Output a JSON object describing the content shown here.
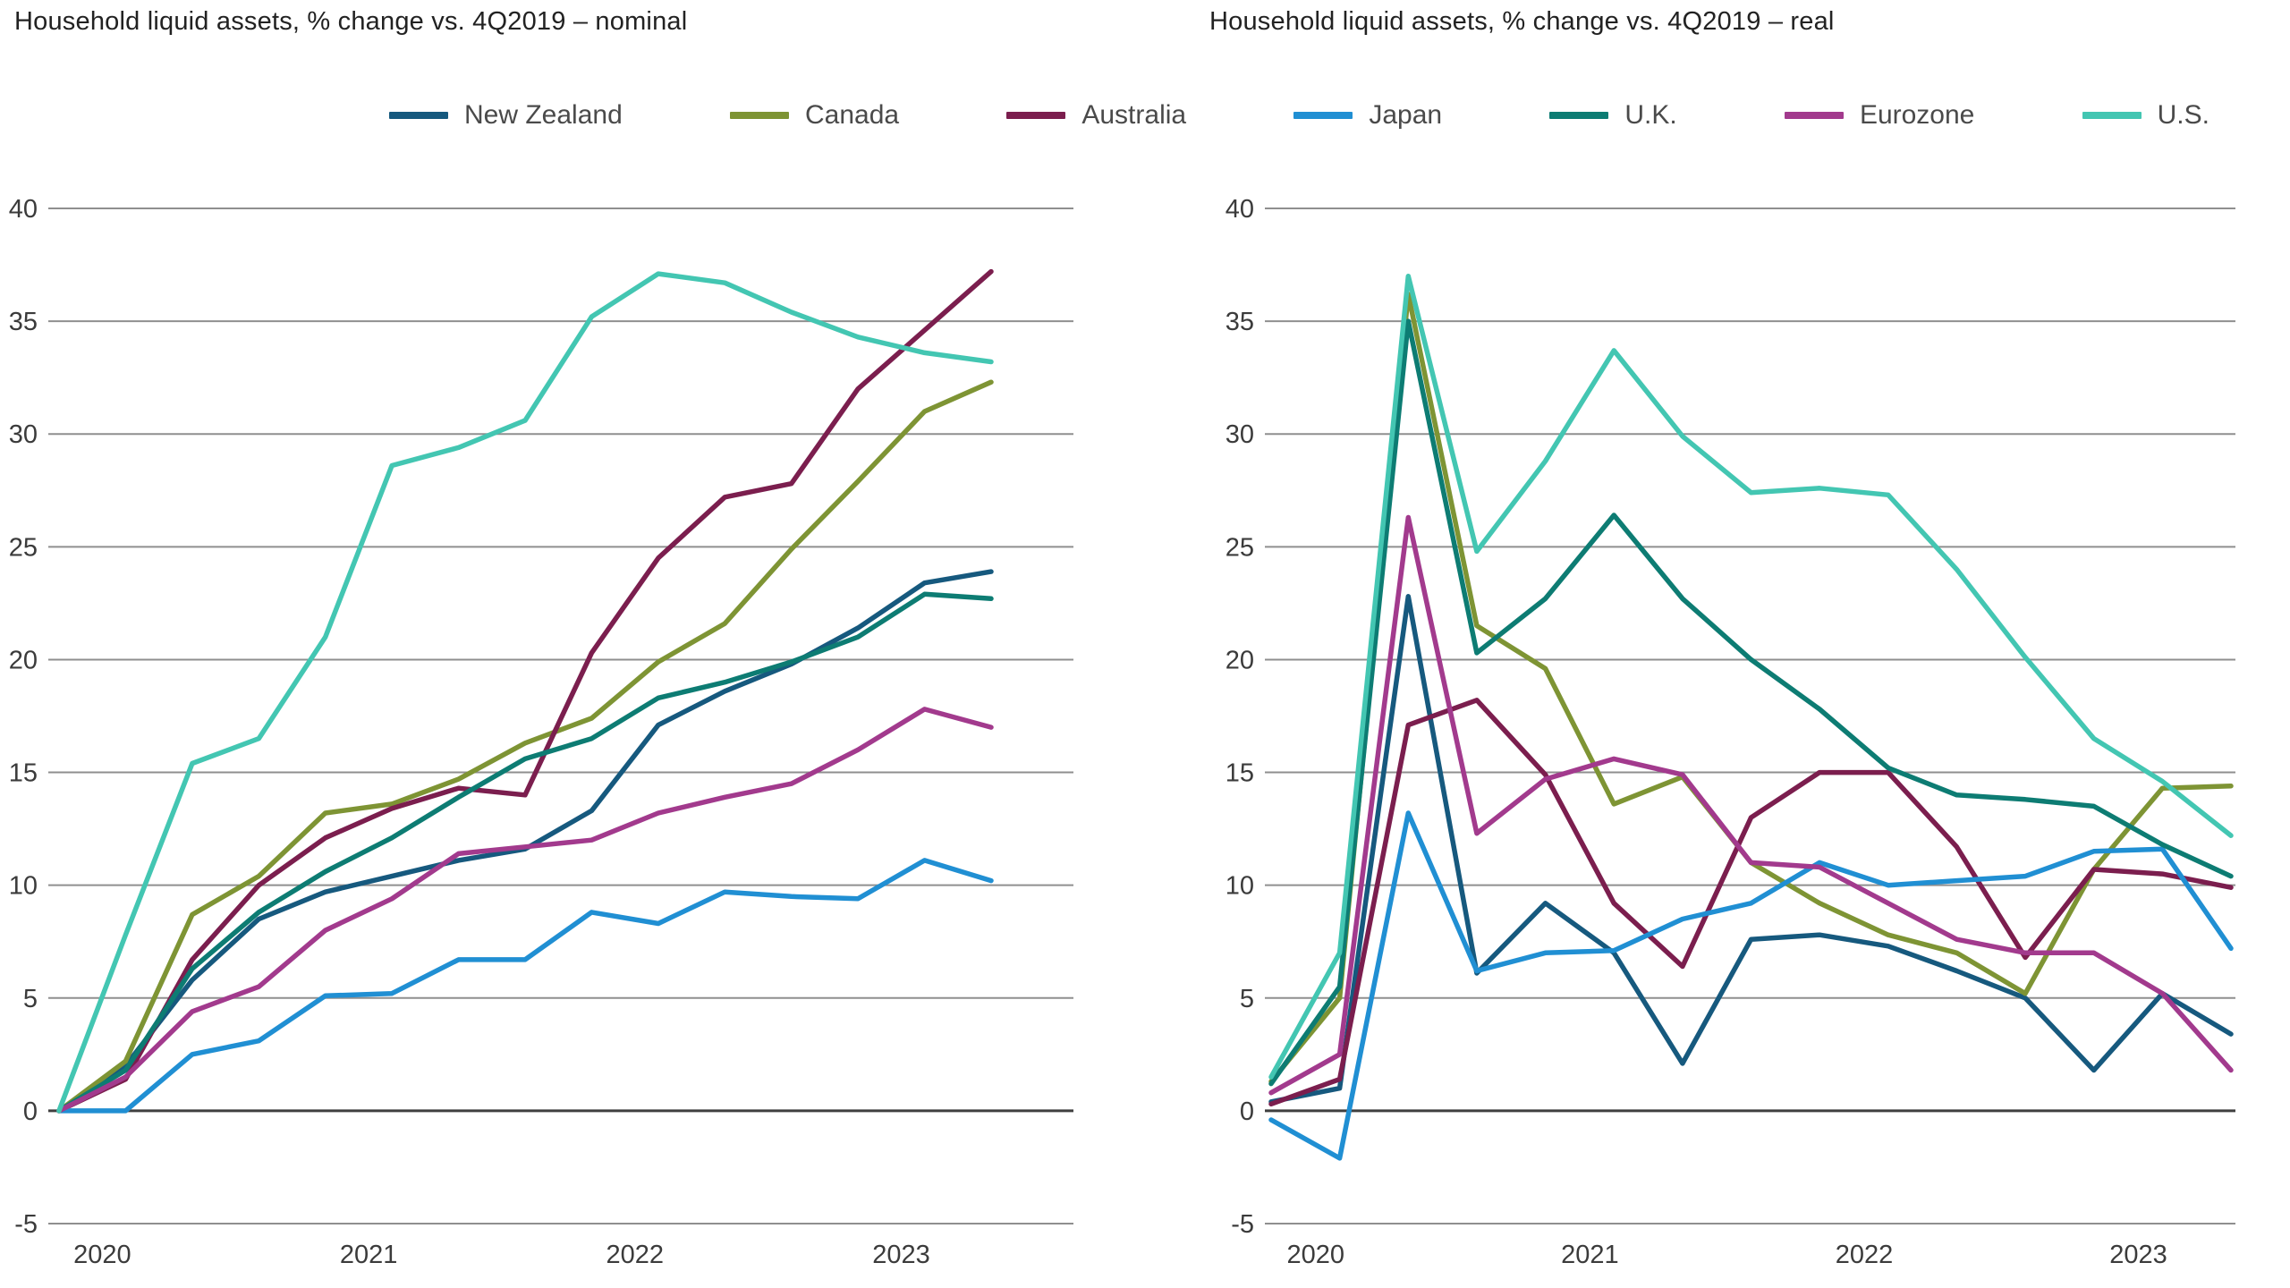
{
  "page": {
    "background": "#ffffff"
  },
  "legend": {
    "items": [
      {
        "label": "New Zealand",
        "color": "#16597e"
      },
      {
        "label": "Canada",
        "color": "#7e9434"
      },
      {
        "label": "Australia",
        "color": "#7b1e4e"
      },
      {
        "label": "Japan",
        "color": "#208fd3"
      },
      {
        "label": "U.K.",
        "color": "#0d7c73"
      },
      {
        "label": "Eurozone",
        "color": "#a23a8d"
      },
      {
        "label": "U.S.",
        "color": "#43c6b2"
      }
    ]
  },
  "chart_data": [
    {
      "type": "line",
      "title": "Household liquid assets, % change vs. 4Q2019 – nominal",
      "x_frequency": "quarterly",
      "xtick_labels": [
        "2020",
        "2021",
        "2022",
        "2023"
      ],
      "ytick_values": [
        40,
        35,
        30,
        25,
        20,
        15,
        10,
        5,
        0,
        -5
      ],
      "ylim": [
        -5,
        40
      ],
      "grid": "horizontal",
      "zero_line": true,
      "legend_position": "top",
      "series": [
        {
          "name": "New Zealand",
          "color": "#16597e",
          "values": [
            0,
            2.0,
            5.8,
            8.5,
            9.7,
            10.4,
            11.1,
            11.6,
            13.3,
            17.1,
            18.6,
            19.8,
            21.4,
            23.4,
            23.9
          ]
        },
        {
          "name": "Canada",
          "color": "#7e9434",
          "values": [
            0,
            2.2,
            8.7,
            10.4,
            13.2,
            13.6,
            14.7,
            16.3,
            17.4,
            19.9,
            21.6,
            24.9,
            27.9,
            31.0,
            32.3
          ]
        },
        {
          "name": "Australia",
          "color": "#7b1e4e",
          "values": [
            0,
            1.4,
            6.7,
            10.0,
            12.1,
            13.4,
            14.3,
            14.0,
            20.3,
            24.5,
            27.2,
            27.8,
            32.0,
            34.6,
            37.2
          ]
        },
        {
          "name": "Japan",
          "color": "#208fd3",
          "values": [
            0,
            0.0,
            2.5,
            3.1,
            5.1,
            5.2,
            6.7,
            6.7,
            8.8,
            8.3,
            9.7,
            9.5,
            9.4,
            11.1,
            10.2
          ]
        },
        {
          "name": "U.K.",
          "color": "#0d7c73",
          "values": [
            0,
            1.8,
            6.3,
            8.8,
            10.6,
            12.1,
            13.9,
            15.6,
            16.5,
            18.3,
            19.0,
            19.9,
            21.0,
            22.9,
            22.7
          ]
        },
        {
          "name": "Eurozone",
          "color": "#a23a8d",
          "values": [
            0,
            1.5,
            4.4,
            5.5,
            8.0,
            9.4,
            11.4,
            11.7,
            12.0,
            13.2,
            13.9,
            14.5,
            16.0,
            17.8,
            17.0
          ]
        },
        {
          "name": "U.S.",
          "color": "#43c6b2",
          "values": [
            0,
            7.8,
            15.4,
            16.5,
            21.0,
            28.6,
            29.4,
            30.6,
            35.2,
            37.1,
            36.7,
            35.4,
            34.3,
            33.6,
            33.2
          ]
        }
      ]
    },
    {
      "type": "line",
      "title": "Household liquid assets, % change vs. 4Q2019 – real",
      "x_frequency": "quarterly",
      "xtick_labels": [
        "2020",
        "2021",
        "2022",
        "2023"
      ],
      "ytick_values": [
        40,
        35,
        30,
        25,
        20,
        15,
        10,
        5,
        0,
        -5
      ],
      "ylim": [
        -5,
        40
      ],
      "grid": "horizontal",
      "zero_line": true,
      "legend_position": "top",
      "series": [
        {
          "name": "New Zealand",
          "color": "#16597e",
          "values": [
            0.4,
            1.0,
            22.8,
            6.1,
            9.2,
            7.0,
            2.1,
            7.6,
            7.8,
            7.3,
            6.2,
            5.0,
            1.8,
            5.2,
            3.4
          ]
        },
        {
          "name": "Canada",
          "color": "#7e9434",
          "values": [
            1.3,
            5.0,
            36.2,
            21.5,
            19.6,
            13.6,
            14.8,
            11.0,
            9.2,
            7.8,
            7.0,
            5.2,
            10.7,
            14.3,
            14.4
          ]
        },
        {
          "name": "Australia",
          "color": "#7b1e4e",
          "values": [
            0.3,
            1.4,
            17.1,
            18.2,
            14.9,
            9.2,
            6.4,
            13.0,
            15.0,
            15.0,
            11.7,
            6.8,
            10.7,
            10.5,
            9.9
          ]
        },
        {
          "name": "Japan",
          "color": "#208fd3",
          "values": [
            -0.4,
            -2.1,
            13.2,
            6.2,
            7.0,
            7.1,
            8.5,
            9.2,
            11.0,
            10.0,
            10.2,
            10.4,
            11.5,
            11.6,
            7.2
          ]
        },
        {
          "name": "U.K.",
          "color": "#0d7c73",
          "values": [
            1.2,
            5.5,
            35.0,
            20.3,
            22.7,
            26.4,
            22.7,
            20.0,
            17.8,
            15.2,
            14.0,
            13.8,
            13.5,
            11.8,
            10.4
          ]
        },
        {
          "name": "Eurozone",
          "color": "#a23a8d",
          "values": [
            0.8,
            2.5,
            26.3,
            12.3,
            14.7,
            15.6,
            14.9,
            11.0,
            10.8,
            9.2,
            7.6,
            7.0,
            7.0,
            5.2,
            1.8
          ]
        },
        {
          "name": "U.S.",
          "color": "#43c6b2",
          "values": [
            1.5,
            7.0,
            37.0,
            24.8,
            28.8,
            33.7,
            29.9,
            27.4,
            27.6,
            27.3,
            24.0,
            20.1,
            16.5,
            14.6,
            12.2
          ]
        }
      ]
    }
  ]
}
